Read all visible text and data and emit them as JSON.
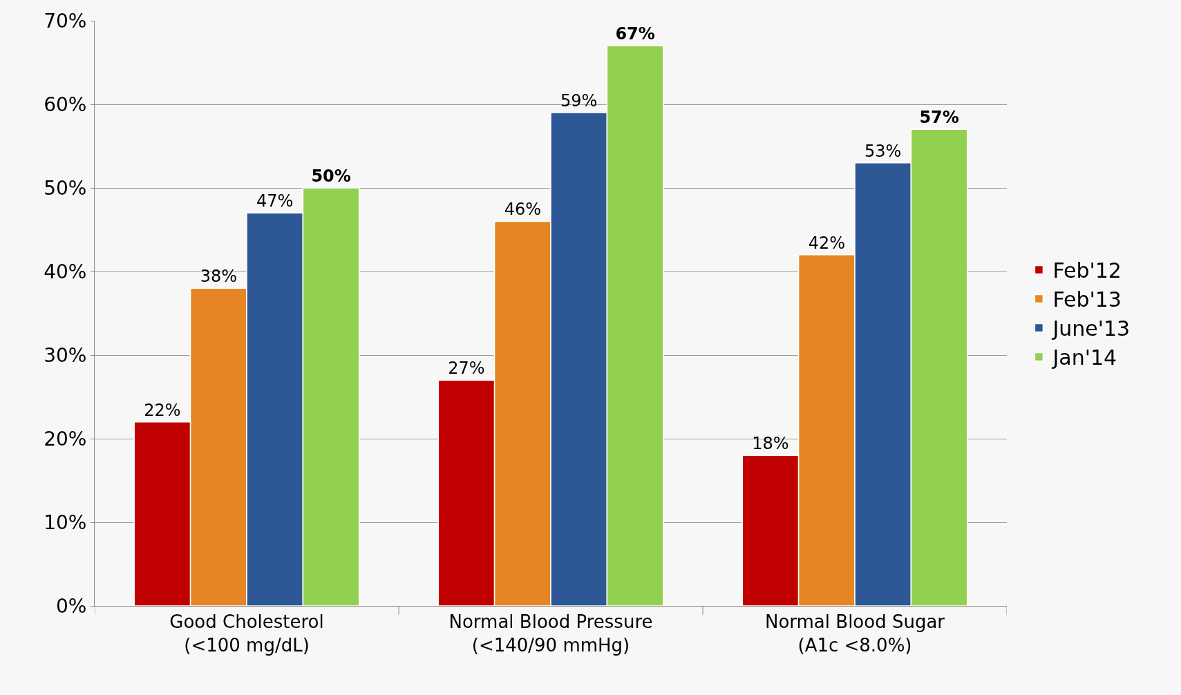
{
  "chart_data": {
    "type": "bar",
    "categories": [
      "Good Cholesterol\n(<100 mg/dL)",
      "Normal Blood Pressure\n(<140/90 mmHg)",
      "Normal Blood Sugar\n(A1c <8.0%)"
    ],
    "series": [
      {
        "name": "Feb'12",
        "color": "#c00000",
        "values": [
          22,
          27,
          18
        ],
        "value_labels": [
          "22%",
          "27%",
          "18%"
        ]
      },
      {
        "name": "Feb'13",
        "color": "#e68523",
        "values": [
          38,
          46,
          42
        ],
        "value_labels": [
          "38%",
          "46%",
          "42%"
        ]
      },
      {
        "name": "June'13",
        "color": "#2e5795",
        "values": [
          47,
          59,
          53
        ],
        "value_labels": [
          "47%",
          "59%",
          "53%"
        ]
      },
      {
        "name": "Jan'14",
        "color": "#92d050",
        "values": [
          50,
          67,
          57
        ],
        "value_labels": [
          "50%",
          "67%",
          "57%"
        ]
      }
    ],
    "ylim": [
      0,
      70
    ],
    "yticks": [
      {
        "value": 0,
        "label": "0%"
      },
      {
        "value": 10,
        "label": "10%"
      },
      {
        "value": 20,
        "label": "20%"
      },
      {
        "value": 30,
        "label": "30%"
      },
      {
        "value": 40,
        "label": "40%"
      },
      {
        "value": 50,
        "label": "50%"
      },
      {
        "value": 60,
        "label": "60%"
      },
      {
        "value": 70,
        "label": "70%"
      }
    ],
    "grid": "y",
    "legend": "right"
  }
}
